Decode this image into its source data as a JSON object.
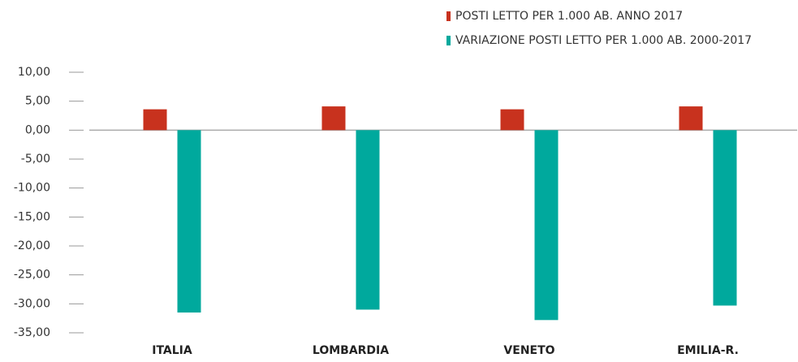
{
  "chart_data": {
    "type": "bar",
    "categories": [
      "ITALIA",
      "LOMBARDIA",
      "VENETO",
      "EMILIA-R."
    ],
    "series": [
      {
        "name": "POSTI LETTO PER 1.000 AB. ANNO 2017",
        "color": "#c8321e",
        "values": [
          3.6,
          4.1,
          3.6,
          4.1
        ]
      },
      {
        "name": "VARIAZIONE POSTI LETTO PER 1.000 AB. 2000-2017",
        "color": "#00a99d",
        "values": [
          -31.5,
          -31.0,
          -32.8,
          -30.3
        ]
      }
    ],
    "ylim": [
      -35,
      10
    ],
    "yticks": [
      {
        "value": 10,
        "label": "10,00"
      },
      {
        "value": 5,
        "label": "5,00"
      },
      {
        "value": 0,
        "label": "0,00"
      },
      {
        "value": -5,
        "label": "-5,00"
      },
      {
        "value": -10,
        "label": "-10,00"
      },
      {
        "value": -15,
        "label": "-15,00"
      },
      {
        "value": -20,
        "label": "-20,00"
      },
      {
        "value": -25,
        "label": "-25,00"
      },
      {
        "value": -30,
        "label": "-30,00"
      },
      {
        "value": -35,
        "label": "-35,00"
      }
    ],
    "legend": "top-right",
    "grid": false
  }
}
